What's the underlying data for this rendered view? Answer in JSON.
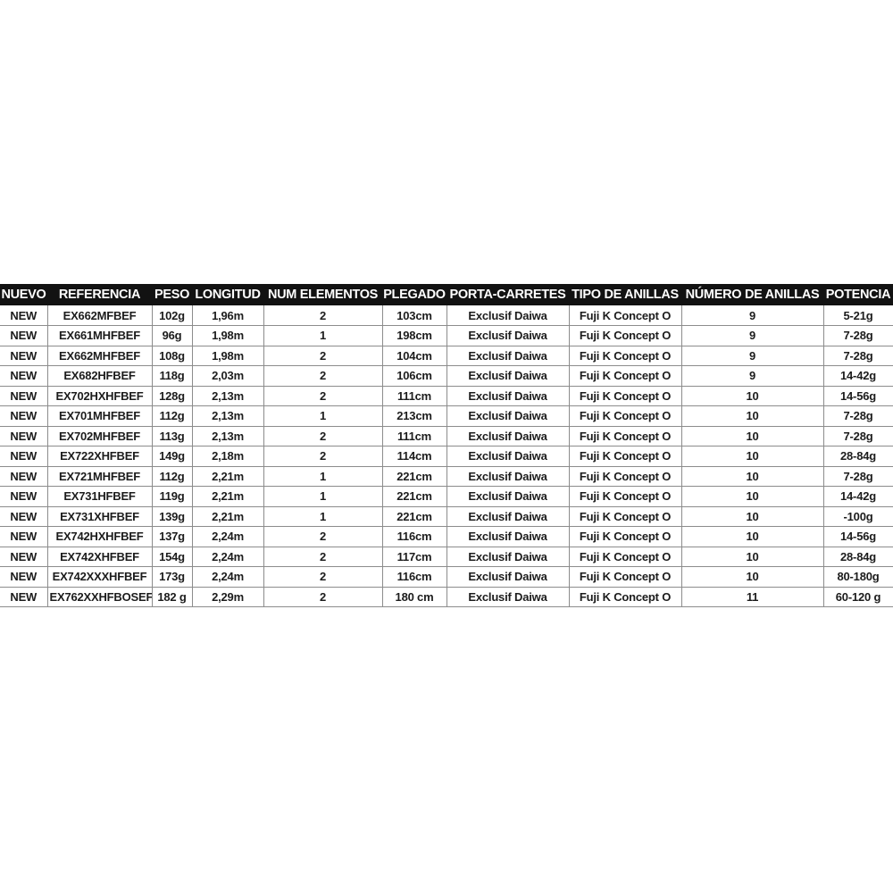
{
  "table": {
    "columns": [
      {
        "key": "nuevo",
        "label": "NUEVO"
      },
      {
        "key": "referencia",
        "label": "REFERENCIA"
      },
      {
        "key": "peso",
        "label": "PESO"
      },
      {
        "key": "longitud",
        "label": "LONGITUD"
      },
      {
        "key": "num_elementos",
        "label": "NUM ELEMENTOS"
      },
      {
        "key": "plegado",
        "label": "PLEGADO"
      },
      {
        "key": "porta_carretes",
        "label": "PORTA-CARRETES"
      },
      {
        "key": "tipo_anillas",
        "label": "TIPO DE ANILLAS"
      },
      {
        "key": "numero_anillas",
        "label": "NÚMERO DE ANILLAS"
      },
      {
        "key": "potencia",
        "label": "POTENCIA"
      }
    ],
    "rows": [
      {
        "nuevo": "NEW",
        "referencia": "EX662MFBEF",
        "peso": "102g",
        "longitud": "1,96m",
        "num_elementos": "2",
        "plegado": "103cm",
        "porta_carretes": "Exclusif Daiwa",
        "tipo_anillas": "Fuji K Concept O",
        "numero_anillas": "9",
        "potencia": "5-21g"
      },
      {
        "nuevo": "NEW",
        "referencia": "EX661MHFBEF",
        "peso": "96g",
        "longitud": "1,98m",
        "num_elementos": "1",
        "plegado": "198cm",
        "porta_carretes": "Exclusif Daiwa",
        "tipo_anillas": "Fuji K Concept O",
        "numero_anillas": "9",
        "potencia": "7-28g"
      },
      {
        "nuevo": "NEW",
        "referencia": "EX662MHFBEF",
        "peso": "108g",
        "longitud": "1,98m",
        "num_elementos": "2",
        "plegado": "104cm",
        "porta_carretes": "Exclusif Daiwa",
        "tipo_anillas": "Fuji K Concept O",
        "numero_anillas": "9",
        "potencia": "7-28g"
      },
      {
        "nuevo": "NEW",
        "referencia": "EX682HFBEF",
        "peso": "118g",
        "longitud": "2,03m",
        "num_elementos": "2",
        "plegado": "106cm",
        "porta_carretes": "Exclusif Daiwa",
        "tipo_anillas": "Fuji K Concept O",
        "numero_anillas": "9",
        "potencia": "14-42g"
      },
      {
        "nuevo": "NEW",
        "referencia": "EX702HXHFBEF",
        "peso": "128g",
        "longitud": "2,13m",
        "num_elementos": "2",
        "plegado": "111cm",
        "porta_carretes": "Exclusif Daiwa",
        "tipo_anillas": "Fuji K Concept O",
        "numero_anillas": "10",
        "potencia": "14-56g"
      },
      {
        "nuevo": "NEW",
        "referencia": "EX701MHFBEF",
        "peso": "112g",
        "longitud": "2,13m",
        "num_elementos": "1",
        "plegado": "213cm",
        "porta_carretes": "Exclusif Daiwa",
        "tipo_anillas": "Fuji K Concept O",
        "numero_anillas": "10",
        "potencia": "7-28g"
      },
      {
        "nuevo": "NEW",
        "referencia": "EX702MHFBEF",
        "peso": "113g",
        "longitud": "2,13m",
        "num_elementos": "2",
        "plegado": "111cm",
        "porta_carretes": "Exclusif Daiwa",
        "tipo_anillas": "Fuji K Concept O",
        "numero_anillas": "10",
        "potencia": "7-28g"
      },
      {
        "nuevo": "NEW",
        "referencia": "EX722XHFBEF",
        "peso": "149g",
        "longitud": "2,18m",
        "num_elementos": "2",
        "plegado": "114cm",
        "porta_carretes": "Exclusif Daiwa",
        "tipo_anillas": "Fuji K Concept O",
        "numero_anillas": "10",
        "potencia": "28-84g"
      },
      {
        "nuevo": "NEW",
        "referencia": "EX721MHFBEF",
        "peso": "112g",
        "longitud": "2,21m",
        "num_elementos": "1",
        "plegado": "221cm",
        "porta_carretes": "Exclusif Daiwa",
        "tipo_anillas": "Fuji K Concept O",
        "numero_anillas": "10",
        "potencia": "7-28g"
      },
      {
        "nuevo": "NEW",
        "referencia": "EX731HFBEF",
        "peso": "119g",
        "longitud": "2,21m",
        "num_elementos": "1",
        "plegado": "221cm",
        "porta_carretes": "Exclusif Daiwa",
        "tipo_anillas": "Fuji K Concept O",
        "numero_anillas": "10",
        "potencia": "14-42g"
      },
      {
        "nuevo": "NEW",
        "referencia": "EX731XHFBEF",
        "peso": "139g",
        "longitud": "2,21m",
        "num_elementos": "1",
        "plegado": "221cm",
        "porta_carretes": "Exclusif Daiwa",
        "tipo_anillas": "Fuji K Concept O",
        "numero_anillas": "10",
        "potencia": "-100g"
      },
      {
        "nuevo": "NEW",
        "referencia": "EX742HXHFBEF",
        "peso": "137g",
        "longitud": "2,24m",
        "num_elementos": "2",
        "plegado": "116cm",
        "porta_carretes": "Exclusif Daiwa",
        "tipo_anillas": "Fuji K Concept O",
        "numero_anillas": "10",
        "potencia": "14-56g"
      },
      {
        "nuevo": "NEW",
        "referencia": "EX742XHFBEF",
        "peso": "154g",
        "longitud": "2,24m",
        "num_elementos": "2",
        "plegado": "117cm",
        "porta_carretes": "Exclusif Daiwa",
        "tipo_anillas": "Fuji K Concept O",
        "numero_anillas": "10",
        "potencia": "28-84g"
      },
      {
        "nuevo": "NEW",
        "referencia": "EX742XXXHFBEF",
        "peso": "173g",
        "longitud": "2,24m",
        "num_elementos": "2",
        "plegado": "116cm",
        "porta_carretes": "Exclusif Daiwa",
        "tipo_anillas": "Fuji K Concept O",
        "numero_anillas": "10",
        "potencia": "80-180g"
      },
      {
        "nuevo": "NEW",
        "referencia": "EX762XXHFBOSEF",
        "peso": "182 g",
        "longitud": "2,29m",
        "num_elementos": "2",
        "plegado": "180 cm",
        "porta_carretes": "Exclusif Daiwa",
        "tipo_anillas": "Fuji K Concept O",
        "numero_anillas": "11",
        "potencia": "60-120 g"
      }
    ]
  },
  "colors": {
    "header_bg": "#121212",
    "header_text": "#ffffff",
    "cell_text": "#1c1c1c",
    "border": "#8c8c8c",
    "page_bg": "#ffffff"
  }
}
